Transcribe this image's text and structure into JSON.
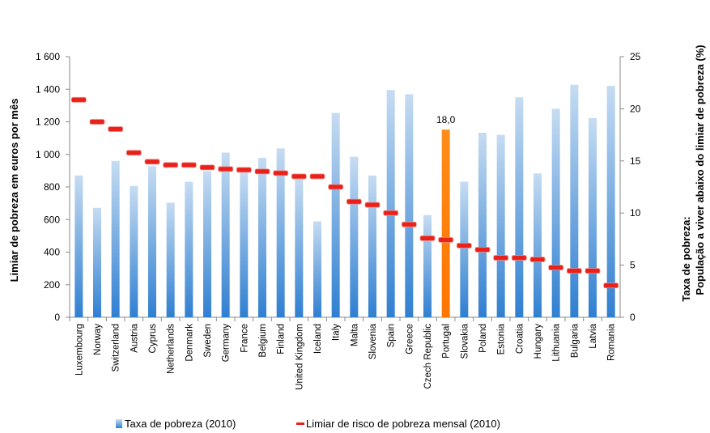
{
  "chart_data": {
    "type": "bar",
    "categories": [
      "Luxembourg",
      "Norway",
      "Switzerland",
      "Austria",
      "Cyprus",
      "Netherlands",
      "Denmark",
      "Sweden",
      "Germany",
      "France",
      "Belgium",
      "Finland",
      "United Kingdom",
      "Iceland",
      "Italy",
      "Malta",
      "Slovenia",
      "Spain",
      "Greece",
      "Czech Republic",
      "Portugal",
      "Slovakia",
      "Poland",
      "Estonia",
      "Croatia",
      "Hungary",
      "Lithuania",
      "Bulgaria",
      "Latvia",
      "Romania"
    ],
    "series": [
      {
        "name": "Taxa de pobreza (2010)",
        "kind": "bar",
        "axis": "right",
        "color": "#5b9bd5",
        "highlight_color": "#ff7f00",
        "values": [
          13.6,
          10.5,
          15.0,
          12.6,
          14.5,
          11.0,
          13.0,
          14.0,
          15.8,
          14.0,
          15.3,
          16.2,
          13.3,
          9.2,
          19.6,
          15.4,
          13.6,
          21.8,
          21.4,
          9.8,
          18.0,
          13.0,
          17.7,
          17.5,
          21.1,
          13.8,
          20.0,
          22.3,
          19.1,
          22.2
        ]
      },
      {
        "name": "Limiar de risco de pobreza mensal (2010)",
        "kind": "dash",
        "axis": "left",
        "color": "#e8221b",
        "values": [
          1335,
          1200,
          1155,
          1010,
          955,
          935,
          935,
          920,
          910,
          905,
          895,
          885,
          865,
          865,
          800,
          710,
          690,
          640,
          570,
          485,
          475,
          440,
          415,
          365,
          365,
          355,
          305,
          285,
          285,
          195
        ]
      }
    ],
    "highlight": {
      "category": "Portugal",
      "label": "18,0"
    },
    "y_left": {
      "label": "Limiar de pobreza em euros por mês",
      "ylim": [
        0,
        1600
      ],
      "ticks": [
        "0",
        "200",
        "400",
        "600",
        "800",
        "1 000",
        "1 200",
        "1 400",
        "1 600"
      ],
      "tick_values": [
        0,
        200,
        400,
        600,
        800,
        1000,
        1200,
        1400,
        1600
      ]
    },
    "y_right": {
      "label_line1": "Taxa de pobreza:",
      "label_line2": "População a viver abaixo do limiar de pobreza (%)",
      "ylim": [
        0,
        25
      ],
      "ticks": [
        "0",
        "5",
        "10",
        "15",
        "20",
        "25"
      ],
      "tick_values": [
        0,
        5,
        10,
        15,
        20,
        25
      ]
    },
    "legend": [
      {
        "label": "Taxa de pobreza (2010)",
        "marker": "bar"
      },
      {
        "label": "Limiar de risco de pobreza mensal (2010)",
        "marker": "dash"
      }
    ],
    "legend_position": "bottom",
    "grid": false
  }
}
